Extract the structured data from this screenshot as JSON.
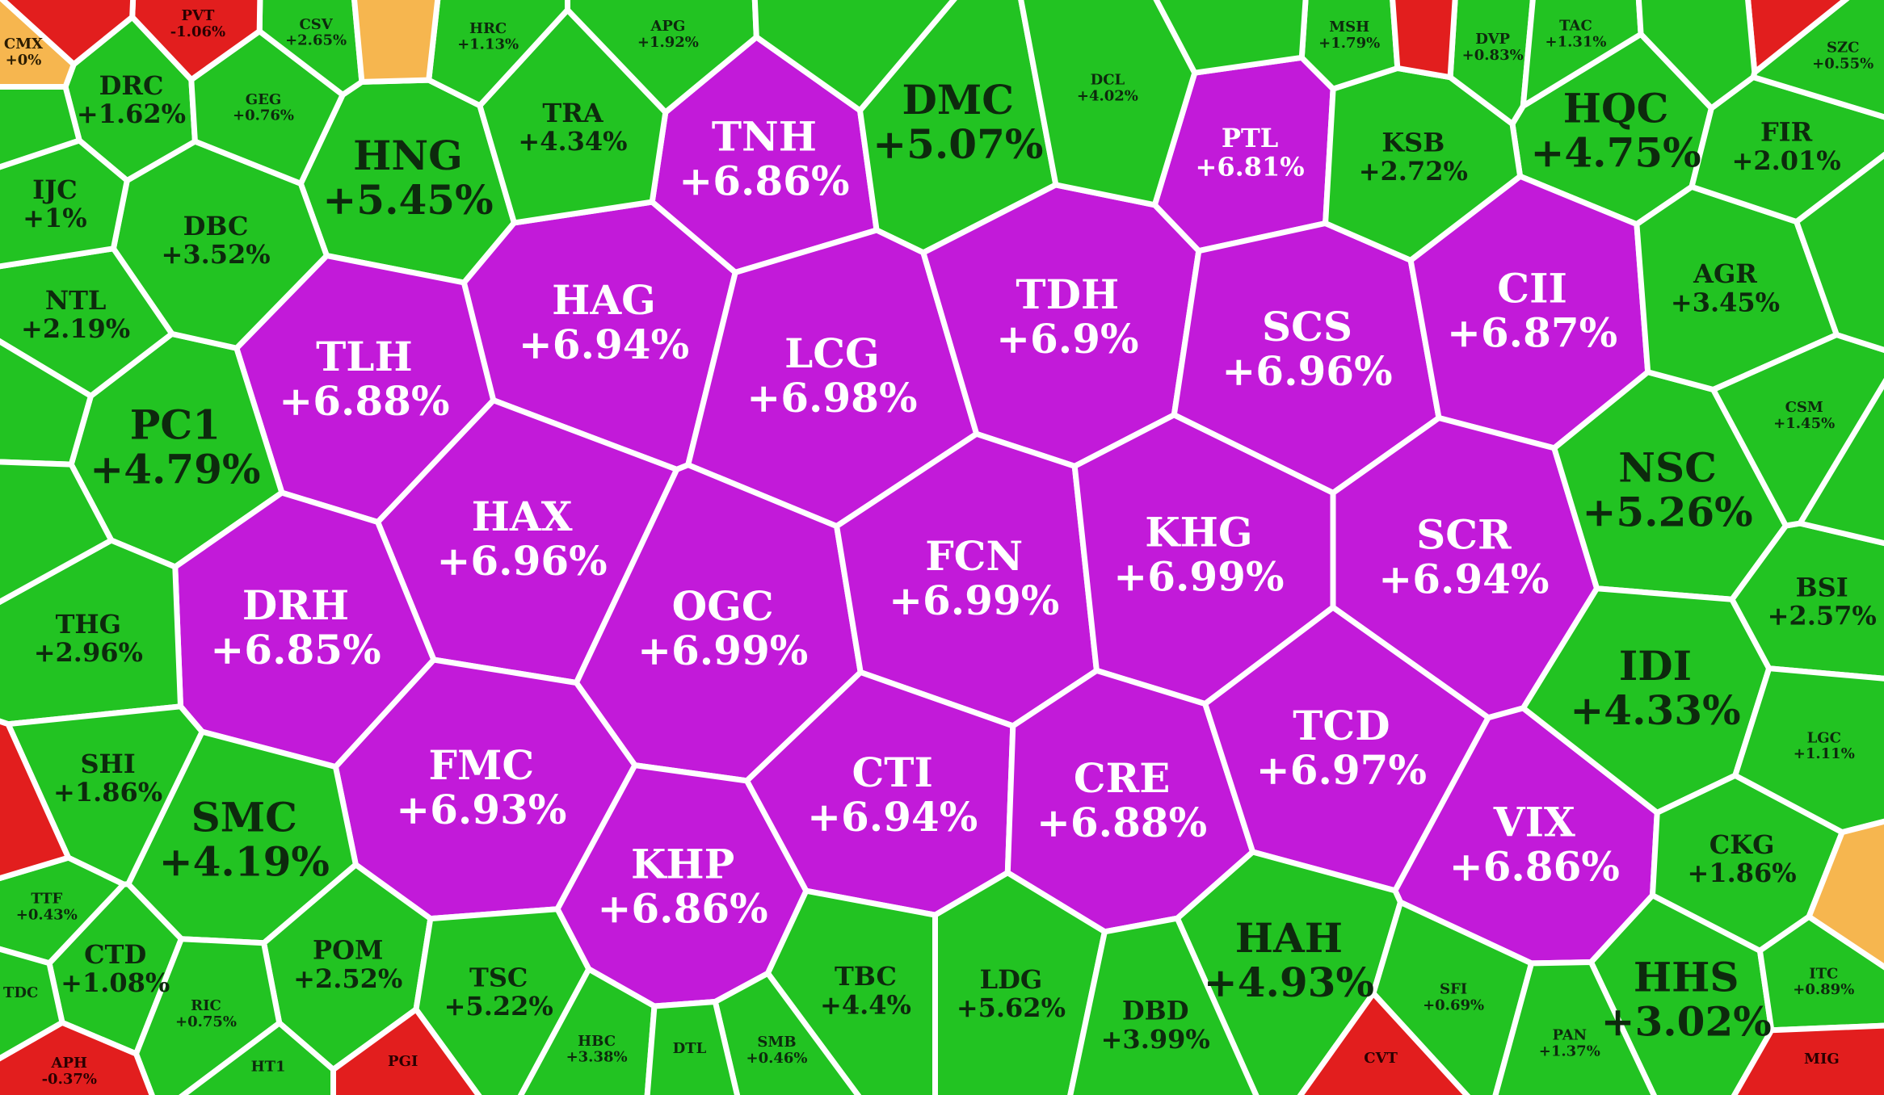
{
  "colors": {
    "ceiling": "#c21ad9",
    "ceiling_text": "#ffffff",
    "up": "#22c322",
    "up_text": "#0d2a0d",
    "down": "#e21e1e",
    "down_text": "#2a0000",
    "reference": "#f6b64f",
    "reference_text": "#2b1c00",
    "border": "#ffffff"
  },
  "chart_data": {
    "type": "heatmap",
    "layout": "voronoi-treemap",
    "cells": [
      {
        "symbol": "HNG",
        "change": "+5.45%",
        "status": "up",
        "size": 3
      },
      {
        "symbol": "TNH",
        "change": "+6.86%",
        "status": "ceiling",
        "size": 3
      },
      {
        "symbol": "DMC",
        "change": "+5.07%",
        "status": "up",
        "size": 3
      },
      {
        "symbol": "PTL",
        "change": "+6.81%",
        "status": "ceiling",
        "size": 2
      },
      {
        "symbol": "HQC",
        "change": "+4.75%",
        "status": "up",
        "size": 3
      },
      {
        "symbol": "TLH",
        "change": "+6.88%",
        "status": "ceiling",
        "size": 3
      },
      {
        "symbol": "HAG",
        "change": "+6.94%",
        "status": "ceiling",
        "size": 3
      },
      {
        "symbol": "LCG",
        "change": "+6.98%",
        "status": "ceiling",
        "size": 3
      },
      {
        "symbol": "TDH",
        "change": "+6.9%",
        "status": "ceiling",
        "size": 3
      },
      {
        "symbol": "SCS",
        "change": "+6.96%",
        "status": "ceiling",
        "size": 3
      },
      {
        "symbol": "CII",
        "change": "+6.87%",
        "status": "ceiling",
        "size": 3
      },
      {
        "symbol": "PC1",
        "change": "+4.79%",
        "status": "up",
        "size": 3
      },
      {
        "symbol": "HAX",
        "change": "+6.96%",
        "status": "ceiling",
        "size": 3
      },
      {
        "symbol": "OGC",
        "change": "+6.99%",
        "status": "ceiling",
        "size": 3
      },
      {
        "symbol": "FCN",
        "change": "+6.99%",
        "status": "ceiling",
        "size": 3
      },
      {
        "symbol": "KHG",
        "change": "+6.99%",
        "status": "ceiling",
        "size": 3
      },
      {
        "symbol": "SCR",
        "change": "+6.94%",
        "status": "ceiling",
        "size": 3
      },
      {
        "symbol": "NSC",
        "change": "+5.26%",
        "status": "up",
        "size": 3
      },
      {
        "symbol": "DRH",
        "change": "+6.85%",
        "status": "ceiling",
        "size": 3
      },
      {
        "symbol": "FMC",
        "change": "+6.93%",
        "status": "ceiling",
        "size": 3
      },
      {
        "symbol": "KHP",
        "change": "+6.86%",
        "status": "ceiling",
        "size": 3
      },
      {
        "symbol": "CTI",
        "change": "+6.94%",
        "status": "ceiling",
        "size": 3
      },
      {
        "symbol": "CRE",
        "change": "+6.88%",
        "status": "ceiling",
        "size": 3
      },
      {
        "symbol": "TCD",
        "change": "+6.97%",
        "status": "ceiling",
        "size": 3
      },
      {
        "symbol": "VIX",
        "change": "+6.86%",
        "status": "ceiling",
        "size": 3
      },
      {
        "symbol": "IDI",
        "change": "+4.33%",
        "status": "up",
        "size": 3
      },
      {
        "symbol": "SMC",
        "change": "+4.19%",
        "status": "up",
        "size": 3
      },
      {
        "symbol": "HAH",
        "change": "+4.93%",
        "status": "up",
        "size": 3
      },
      {
        "symbol": "HHS",
        "change": "+3.02%",
        "status": "up",
        "size": 3
      },
      {
        "symbol": "DBC",
        "change": "+3.52%",
        "status": "up",
        "size": 2
      },
      {
        "symbol": "AGR",
        "change": "+3.45%",
        "status": "up",
        "size": 2
      },
      {
        "symbol": "THG",
        "change": "+2.96%",
        "status": "up",
        "size": 2
      },
      {
        "symbol": "DRC",
        "change": "+1.62%",
        "status": "up",
        "size": 2
      },
      {
        "symbol": "NTL",
        "change": "+2.19%",
        "status": "up",
        "size": 2
      },
      {
        "symbol": "TRA",
        "change": "+4.34%",
        "status": "up",
        "size": 2
      },
      {
        "symbol": "KSB",
        "change": "+2.72%",
        "status": "up",
        "size": 2
      },
      {
        "symbol": "FIR",
        "change": "+2.01%",
        "status": "up",
        "size": 2
      },
      {
        "symbol": "BSI",
        "change": "+2.57%",
        "status": "up",
        "size": 2
      },
      {
        "symbol": "CKG",
        "change": "+1.86%",
        "status": "up",
        "size": 2
      },
      {
        "symbol": "POM",
        "change": "+2.52%",
        "status": "up",
        "size": 2
      },
      {
        "symbol": "TSC",
        "change": "+5.22%",
        "status": "up",
        "size": 2
      },
      {
        "symbol": "TBC",
        "change": "+4.4%",
        "status": "up",
        "size": 2
      },
      {
        "symbol": "LDG",
        "change": "+5.62%",
        "status": "up",
        "size": 2
      },
      {
        "symbol": "DBD",
        "change": "+3.99%",
        "status": "up",
        "size": 2
      },
      {
        "symbol": "SHI",
        "change": "+1.86%",
        "status": "up",
        "size": 2
      },
      {
        "symbol": "CTD",
        "change": "+1.08%",
        "status": "up",
        "size": 2
      },
      {
        "symbol": "IJC",
        "change": "+1%",
        "status": "up",
        "size": 2
      },
      {
        "symbol": "LGC",
        "change": "+1.11%",
        "status": "up",
        "size": 1
      },
      {
        "symbol": "CSM",
        "change": "+1.45%",
        "status": "up",
        "size": 1
      },
      {
        "symbol": "ITC",
        "change": "+0.89%",
        "status": "up",
        "size": 1
      },
      {
        "symbol": "GEG",
        "change": "+0.76%",
        "status": "up",
        "size": 1
      },
      {
        "symbol": "DCL",
        "change": "+4.02%",
        "status": "up",
        "size": 1
      },
      {
        "symbol": "MSH",
        "change": "+1.79%",
        "status": "up",
        "size": 1
      },
      {
        "symbol": "DVP",
        "change": "+0.83%",
        "status": "up",
        "size": 1
      },
      {
        "symbol": "TAC",
        "change": "+1.31%",
        "status": "up",
        "size": 1
      },
      {
        "symbol": "SZC",
        "change": "+0.55%",
        "status": "up",
        "size": 1
      },
      {
        "symbol": "CSV",
        "change": "+2.65%",
        "status": "up",
        "size": 1
      },
      {
        "symbol": "HRC",
        "change": "+1.13%",
        "status": "up",
        "size": 1
      },
      {
        "symbol": "APG",
        "change": "+1.92%",
        "status": "up",
        "size": 1
      },
      {
        "symbol": "TTF",
        "change": "+0.43%",
        "status": "up",
        "size": 1
      },
      {
        "symbol": "RIC",
        "change": "+0.75%",
        "status": "up",
        "size": 1
      },
      {
        "symbol": "HBC",
        "change": "+3.38%",
        "status": "up",
        "size": 1
      },
      {
        "symbol": "SMB",
        "change": "+0.46%",
        "status": "up",
        "size": 1
      },
      {
        "symbol": "SFI",
        "change": "+0.69%",
        "status": "up",
        "size": 1
      },
      {
        "symbol": "PAN",
        "change": "+1.37%",
        "status": "up",
        "size": 1
      },
      {
        "symbol": "CMX",
        "change": "+0%",
        "status": "reference",
        "size": 1
      },
      {
        "symbol": "PVT",
        "change": "-1.06%",
        "status": "down",
        "size": 1
      },
      {
        "symbol": "APH",
        "change": "-0.37%",
        "status": "down",
        "size": 1
      },
      {
        "symbol": "MIG",
        "change": "",
        "status": "down",
        "size": 1
      },
      {
        "symbol": "PGI",
        "change": "",
        "status": "down",
        "size": 1
      },
      {
        "symbol": "DTL",
        "change": "",
        "status": "up",
        "size": 1
      },
      {
        "symbol": "HT1",
        "change": "",
        "status": "up",
        "size": 1
      },
      {
        "symbol": "CVT",
        "change": "",
        "status": "down",
        "size": 1
      },
      {
        "symbol": "TDC",
        "change": "",
        "status": "up",
        "size": 1
      },
      {
        "symbol": "",
        "change": "",
        "status": "down",
        "size": 1
      },
      {
        "symbol": "",
        "change": "",
        "status": "down",
        "size": 1
      },
      {
        "symbol": "",
        "change": "",
        "status": "reference",
        "size": 1
      },
      {
        "symbol": "",
        "change": "",
        "status": "down",
        "size": 1
      },
      {
        "symbol": "",
        "change": "",
        "status": "down",
        "size": 1
      },
      {
        "symbol": "",
        "change": "",
        "status": "reference",
        "size": 1
      },
      {
        "symbol": "",
        "change": "",
        "status": "up",
        "size": 1
      },
      {
        "symbol": "",
        "change": "",
        "status": "up",
        "size": 1
      },
      {
        "symbol": "",
        "change": "",
        "status": "up",
        "size": 1
      },
      {
        "symbol": "",
        "change": "",
        "status": "up",
        "size": 1
      },
      {
        "symbol": "",
        "change": "",
        "status": "up",
        "size": 1
      },
      {
        "symbol": "",
        "change": "",
        "status": "up",
        "size": 1
      },
      {
        "symbol": "",
        "change": "",
        "status": "up",
        "size": 1
      },
      {
        "symbol": "",
        "change": "",
        "status": "up",
        "size": 1
      }
    ]
  }
}
